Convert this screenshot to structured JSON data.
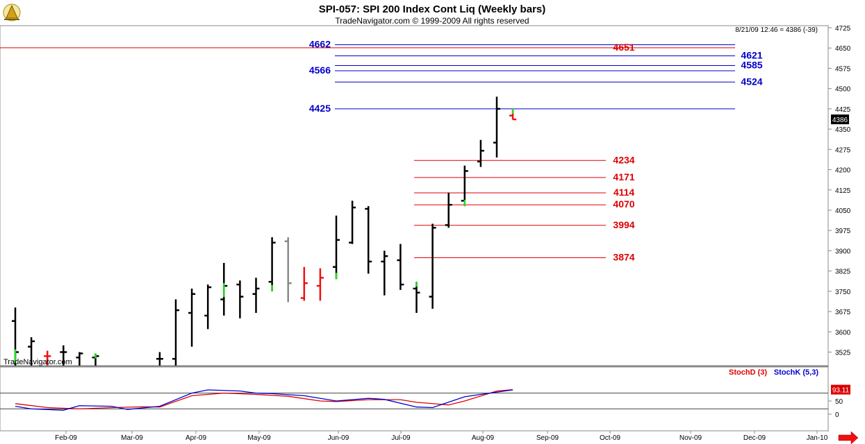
{
  "header": {
    "title": "SPI-057:  SPI 200 Index Cont Liq  (Weekly bars)",
    "copyright": "TradeNavigator.com © 1999-2009 All rights reserved",
    "quote": "8/21/09 12:46 = 4386 (-39)",
    "watermark": "TradeNavigator.com",
    "logo_icon": "sextant-logo-icon",
    "scroll_icon": "right-arrow-icon"
  },
  "colors": {
    "bar": "#000000",
    "up_tick": "#22dd22",
    "down_bar": "#ee1111",
    "gray_bar": "#888888",
    "blue_level": "#0000cc",
    "red_level": "#dd0000",
    "stoch_d": "#dd0000",
    "stoch_k": "#0000cc"
  },
  "chart_data": [
    {
      "type": "bar",
      "subtype": "ohlc",
      "title": "SPI 200 Index Cont Liq (Weekly bars)",
      "ylim": [
        3475,
        4725
      ],
      "y_ticks": [
        "4725",
        "4650",
        "4575",
        "4500",
        "4425",
        "4350",
        "4275",
        "4200",
        "4125",
        "4050",
        "3975",
        "3900",
        "3825",
        "3750",
        "3675",
        "3600",
        "3525"
      ],
      "x_ticks": [
        "Feb-09",
        "Mar-09",
        "Apr-09",
        "May-09",
        "Jun-09",
        "Jul-09",
        "Aug-09",
        "Sep-09",
        "Oct-09",
        "Nov-09",
        "Dec-09",
        "Jan-10"
      ],
      "last_price": "4386",
      "bars": [
        {
          "i": 0,
          "h": 3690,
          "l": 3470,
          "o": 3640,
          "c": 3525,
          "col": "black",
          "g": "c"
        },
        {
          "i": 1,
          "h": 3580,
          "l": 3470,
          "o": 3545,
          "c": 3565,
          "col": "black"
        },
        {
          "i": 2,
          "h": 3530,
          "l": 3470,
          "o": 3510,
          "c": 3510,
          "col": "red"
        },
        {
          "i": 3,
          "h": 3550,
          "l": 3470,
          "o": 3525,
          "c": 3525,
          "col": "black"
        },
        {
          "i": 4,
          "h": 3525,
          "l": 3470,
          "o": 3505,
          "c": 3520,
          "col": "black"
        },
        {
          "i": 5,
          "h": 3520,
          "l": 3470,
          "o": 3505,
          "c": 3510,
          "col": "black",
          "g": "h"
        },
        {
          "i": 9,
          "h": 3525,
          "l": 3470,
          "o": 3500,
          "c": 3500,
          "col": "black"
        },
        {
          "i": 10,
          "h": 3720,
          "l": 3475,
          "o": 3500,
          "c": 3680,
          "col": "black"
        },
        {
          "i": 11,
          "h": 3760,
          "l": 3545,
          "o": 3670,
          "c": 3740,
          "col": "black"
        },
        {
          "i": 12,
          "h": 3775,
          "l": 3610,
          "o": 3660,
          "c": 3765,
          "col": "black"
        },
        {
          "i": 13,
          "h": 3855,
          "l": 3660,
          "o": 3720,
          "c": 3770,
          "col": "black",
          "g": "c"
        },
        {
          "i": 14,
          "h": 3790,
          "l": 3650,
          "o": 3775,
          "c": 3730,
          "col": "black"
        },
        {
          "i": 15,
          "h": 3800,
          "l": 3670,
          "o": 3740,
          "c": 3760,
          "col": "black"
        },
        {
          "i": 16,
          "h": 3950,
          "l": 3750,
          "o": 3785,
          "c": 3930,
          "col": "black",
          "g": "l"
        },
        {
          "i": 17,
          "h": 3950,
          "l": 3710,
          "o": 3935,
          "c": 3780,
          "col": "gray"
        },
        {
          "i": 18,
          "h": 3840,
          "l": 3715,
          "o": 3725,
          "c": 3780,
          "col": "red"
        },
        {
          "i": 19,
          "h": 3835,
          "l": 3715,
          "o": 3770,
          "c": 3800,
          "col": "red"
        },
        {
          "i": 20,
          "h": 4030,
          "l": 3795,
          "o": 3840,
          "c": 3940,
          "col": "black",
          "g": "l"
        },
        {
          "i": 21,
          "h": 4085,
          "l": 3925,
          "o": 3930,
          "c": 4060,
          "col": "black"
        },
        {
          "i": 22,
          "h": 4065,
          "l": 3815,
          "o": 4055,
          "c": 3860,
          "col": "black"
        },
        {
          "i": 23,
          "h": 3900,
          "l": 3735,
          "o": 3860,
          "c": 3880,
          "col": "black"
        },
        {
          "i": 24,
          "h": 3925,
          "l": 3755,
          "o": 3865,
          "c": 3775,
          "col": "black"
        },
        {
          "i": 25,
          "h": 3785,
          "l": 3670,
          "o": 3760,
          "c": 3745,
          "col": "black",
          "g": "h"
        },
        {
          "i": 26,
          "h": 4000,
          "l": 3685,
          "o": 3730,
          "c": 3985,
          "col": "black"
        },
        {
          "i": 27,
          "h": 4115,
          "l": 3985,
          "o": 3995,
          "c": 4070,
          "col": "black"
        },
        {
          "i": 28,
          "h": 4215,
          "l": 4065,
          "o": 4085,
          "c": 4195,
          "col": "black",
          "g": "l"
        },
        {
          "i": 29,
          "h": 4310,
          "l": 4210,
          "o": 4230,
          "c": 4270,
          "col": "black"
        },
        {
          "i": 30,
          "h": 4470,
          "l": 4245,
          "o": 4300,
          "c": 4425,
          "col": "black"
        },
        {
          "i": 31,
          "h": 4425,
          "l": 4385,
          "o": 4400,
          "c": 4386,
          "col": "red",
          "g": "h"
        }
      ],
      "levels": [
        {
          "value": 4662,
          "label": "4662",
          "color": "blue",
          "label_side": "left"
        },
        {
          "value": 4651,
          "label": "4651",
          "color": "red",
          "label_side": "right"
        },
        {
          "value": 4621,
          "label": "4621",
          "color": "blue",
          "label_side": "right"
        },
        {
          "value": 4585,
          "label": "4585",
          "color": "blue",
          "label_side": "right"
        },
        {
          "value": 4566,
          "label": "4566",
          "color": "blue",
          "label_side": "left"
        },
        {
          "value": 4524,
          "label": "4524",
          "color": "blue",
          "label_side": "right"
        },
        {
          "value": 4425,
          "label": "4425",
          "color": "blue",
          "label_side": "left"
        },
        {
          "value": 4234,
          "label": "4234",
          "color": "red",
          "label_side": "right"
        },
        {
          "value": 4171,
          "label": "4171",
          "color": "red",
          "label_side": "right"
        },
        {
          "value": 4114,
          "label": "4114",
          "color": "red",
          "label_side": "right"
        },
        {
          "value": 4070,
          "label": "4070",
          "color": "red",
          "label_side": "right"
        },
        {
          "value": 3994,
          "label": "3994",
          "color": "red",
          "label_side": "right"
        },
        {
          "value": 3874,
          "label": "3874",
          "color": "red",
          "label_side": "right"
        }
      ]
    },
    {
      "type": "line",
      "title": "",
      "ylim": [
        0,
        100
      ],
      "y_ticks": [
        "50",
        "0"
      ],
      "ref_lines": [
        80,
        20
      ],
      "last_value": "93.11",
      "series": [
        {
          "name": "StochD (3)",
          "color": "red",
          "values": [
            [
              0,
              40
            ],
            [
              2,
              25
            ],
            [
              4,
              20
            ],
            [
              6,
              25
            ],
            [
              8,
              28
            ],
            [
              9,
              27
            ],
            [
              11,
              70
            ],
            [
              13,
              80
            ],
            [
              15,
              75
            ],
            [
              17,
              68
            ],
            [
              19,
              50
            ],
            [
              20,
              48
            ],
            [
              22,
              55
            ],
            [
              24,
              55
            ],
            [
              25,
              45
            ],
            [
              27,
              35
            ],
            [
              28,
              50
            ],
            [
              30,
              88
            ],
            [
              31,
              93
            ]
          ]
        },
        {
          "name": "StochK (5,3)",
          "color": "blue",
          "values": [
            [
              0,
              30
            ],
            [
              1,
              20
            ],
            [
              3,
              15
            ],
            [
              4,
              32
            ],
            [
              6,
              30
            ],
            [
              7,
              18
            ],
            [
              9,
              30
            ],
            [
              11,
              80
            ],
            [
              12,
              92
            ],
            [
              14,
              88
            ],
            [
              15,
              80
            ],
            [
              16,
              78
            ],
            [
              18,
              70
            ],
            [
              20,
              50
            ],
            [
              22,
              60
            ],
            [
              23,
              56
            ],
            [
              25,
              27
            ],
            [
              26,
              25
            ],
            [
              28,
              66
            ],
            [
              29,
              75
            ],
            [
              31,
              92
            ]
          ]
        }
      ]
    }
  ]
}
